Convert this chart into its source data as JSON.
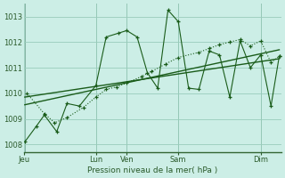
{
  "bg_color": "#cceee6",
  "grid_color": "#99ccbb",
  "line_color": "#1a5c1a",
  "xlabel": "Pression niveau de la mer( hPa )",
  "x_tick_pos": [
    0,
    3.5,
    5.0,
    7.5,
    11.5
  ],
  "x_labels": [
    "Jeu",
    "Lun",
    "Ven",
    "Sam",
    "Dim"
  ],
  "xlim": [
    0,
    12.5
  ],
  "ylim": [
    1007.7,
    1013.5
  ],
  "yticks": [
    1008,
    1009,
    1010,
    1011,
    1012,
    1013
  ],
  "series1_x": [
    0.15,
    1.0,
    1.5,
    2.1,
    2.9,
    3.5,
    4.0,
    4.5,
    5.0,
    5.7,
    6.2,
    6.9,
    7.5,
    8.5,
    9.0,
    9.5,
    10.0,
    10.5,
    11.0,
    11.5,
    12.0,
    12.4
  ],
  "series1_y": [
    1010.0,
    1009.2,
    1008.85,
    1009.05,
    1009.45,
    1009.85,
    1010.15,
    1010.25,
    1010.4,
    1010.65,
    1010.85,
    1011.15,
    1011.4,
    1011.6,
    1011.75,
    1011.9,
    1012.0,
    1012.1,
    1011.85,
    1012.05,
    1011.2,
    1011.45
  ],
  "series2_x": [
    0.05,
    0.6,
    1.0,
    1.6,
    2.1,
    2.7,
    3.5,
    4.0,
    4.6,
    5.0,
    5.5,
    6.0,
    6.5,
    7.0,
    7.5,
    8.0,
    8.5,
    9.0,
    9.5,
    10.0,
    10.5,
    11.0,
    11.5,
    12.0,
    12.4
  ],
  "series2_y": [
    1008.1,
    1008.7,
    1009.15,
    1008.5,
    1009.6,
    1009.5,
    1010.3,
    1012.2,
    1012.35,
    1012.45,
    1012.2,
    1010.8,
    1010.2,
    1013.25,
    1012.8,
    1010.2,
    1010.15,
    1011.65,
    1011.5,
    1009.85,
    1012.05,
    1011.0,
    1011.5,
    1009.5,
    1011.45
  ],
  "trend1_x": [
    0.05,
    12.4
  ],
  "trend1_y": [
    1009.85,
    1011.35
  ],
  "trend2_x": [
    0.05,
    12.4
  ],
  "trend2_y": [
    1009.55,
    1011.7
  ],
  "vert_lines": [
    0.05,
    3.5,
    5.0,
    7.5,
    11.5
  ]
}
